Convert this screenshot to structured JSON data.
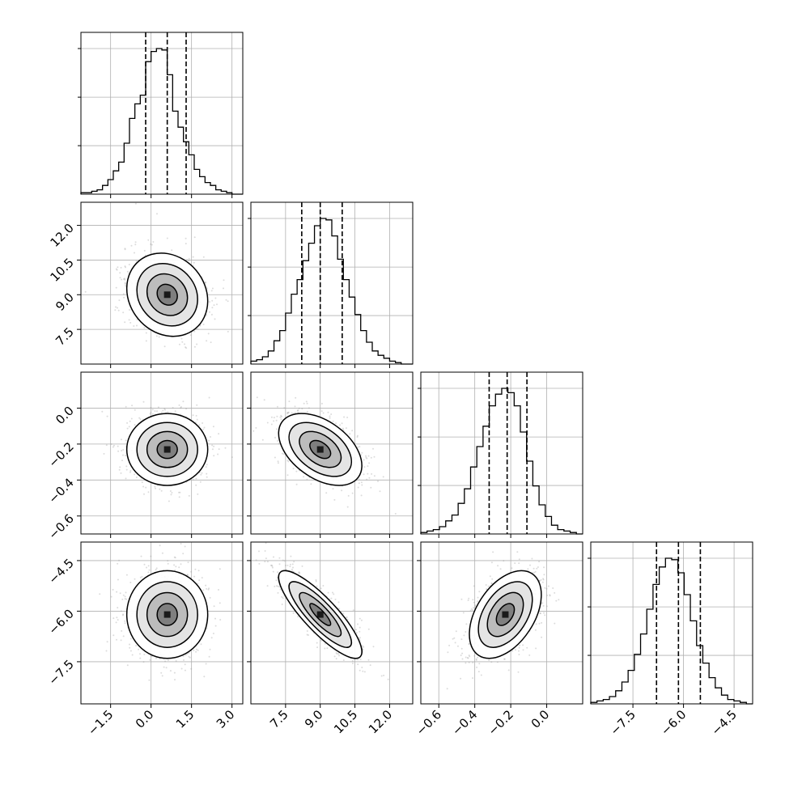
{
  "chart_data": {
    "type": "corner",
    "grid": true,
    "parameters": [
      {
        "index": 0,
        "range": [
          -2.6,
          3.4
        ],
        "ticks": [
          -1.5,
          0.0,
          1.5,
          3.0
        ],
        "tick_labels": [
          "−1.5",
          "0.0",
          "1.5",
          "3.0"
        ],
        "quantiles": [
          -0.2,
          0.6,
          1.3
        ],
        "histogram": {
          "bin_start": -2.6,
          "bin_width": 0.2,
          "counts": [
            1,
            1,
            2,
            3,
            6,
            10,
            16,
            22,
            35,
            52,
            62,
            68,
            91,
            98,
            100,
            99,
            82,
            57,
            46,
            36,
            27,
            17,
            12,
            8,
            6,
            3,
            2,
            1,
            0,
            0
          ]
        }
      },
      {
        "index": 1,
        "range": [
          6.0,
          13.0
        ],
        "ticks": [
          7.5,
          9.0,
          10.5,
          12.0
        ],
        "tick_labels": [
          "7.5",
          "9.0",
          "10.5",
          "12.0"
        ],
        "quantiles": [
          8.2,
          9.0,
          9.95
        ],
        "histogram": {
          "bin_start": 6.0,
          "bin_width": 0.25,
          "counts": [
            2,
            3,
            5,
            9,
            16,
            23,
            35,
            48,
            58,
            71,
            83,
            95,
            100,
            99,
            88,
            72,
            58,
            46,
            34,
            23,
            15,
            9,
            6,
            4,
            2,
            1,
            0,
            0
          ]
        }
      },
      {
        "index": 2,
        "range": [
          -0.7,
          0.2
        ],
        "ticks": [
          -0.6,
          -0.4,
          -0.2,
          0.0
        ],
        "tick_labels": [
          "−0.6",
          "−0.4",
          "−0.2",
          "0.0"
        ],
        "quantiles": [
          -0.32,
          -0.22,
          -0.11
        ],
        "histogram": {
          "bin_start": -0.7,
          "bin_width": 0.0346,
          "counts": [
            1,
            2,
            3,
            5,
            9,
            13,
            21,
            31,
            46,
            60,
            74,
            88,
            96,
            100,
            97,
            88,
            70,
            50,
            33,
            20,
            12,
            6,
            3,
            2,
            1,
            0
          ]
        }
      },
      {
        "index": 3,
        "range": [
          -8.75,
          -3.95
        ],
        "ticks": [
          -7.5,
          -6.0,
          -4.5
        ],
        "tick_labels": [
          "−7.5",
          "−6.0",
          "−4.5"
        ],
        "quantiles": [
          -6.8,
          -6.15,
          -5.5
        ],
        "histogram": {
          "bin_start": -8.75,
          "bin_width": 0.1846,
          "counts": [
            1,
            2,
            3,
            5,
            9,
            15,
            23,
            34,
            48,
            65,
            82,
            94,
            100,
            99,
            90,
            75,
            57,
            40,
            28,
            18,
            11,
            6,
            3,
            2,
            1,
            0
          ]
        }
      }
    ],
    "pairs": [
      {
        "x": 0,
        "y": 1,
        "mean": [
          0.6,
          9.0
        ],
        "sd": [
          0.75,
          0.9
        ],
        "corr": -0.15
      },
      {
        "x": 0,
        "y": 2,
        "mean": [
          0.6,
          -0.23
        ],
        "sd": [
          0.75,
          0.1
        ],
        "corr": 0.0
      },
      {
        "x": 1,
        "y": 2,
        "mean": [
          9.0,
          -0.23
        ],
        "sd": [
          0.9,
          0.1
        ],
        "corr": -0.45
      },
      {
        "x": 0,
        "y": 3,
        "mean": [
          0.6,
          -6.1
        ],
        "sd": [
          0.75,
          0.65
        ],
        "corr": 0.0
      },
      {
        "x": 1,
        "y": 3,
        "mean": [
          9.0,
          -6.1
        ],
        "sd": [
          0.9,
          0.65
        ],
        "corr": -0.85
      },
      {
        "x": 2,
        "y": 3,
        "mean": [
          -0.23,
          -6.1
        ],
        "sd": [
          0.1,
          0.65
        ],
        "corr": 0.45
      }
    ],
    "contour_levels_sigma": [
      0.5,
      1.0,
      1.5,
      2.0
    ],
    "colors": {
      "line": "#000000",
      "grid": "#b0b0b0",
      "scatter": "#9a9a9a"
    }
  }
}
